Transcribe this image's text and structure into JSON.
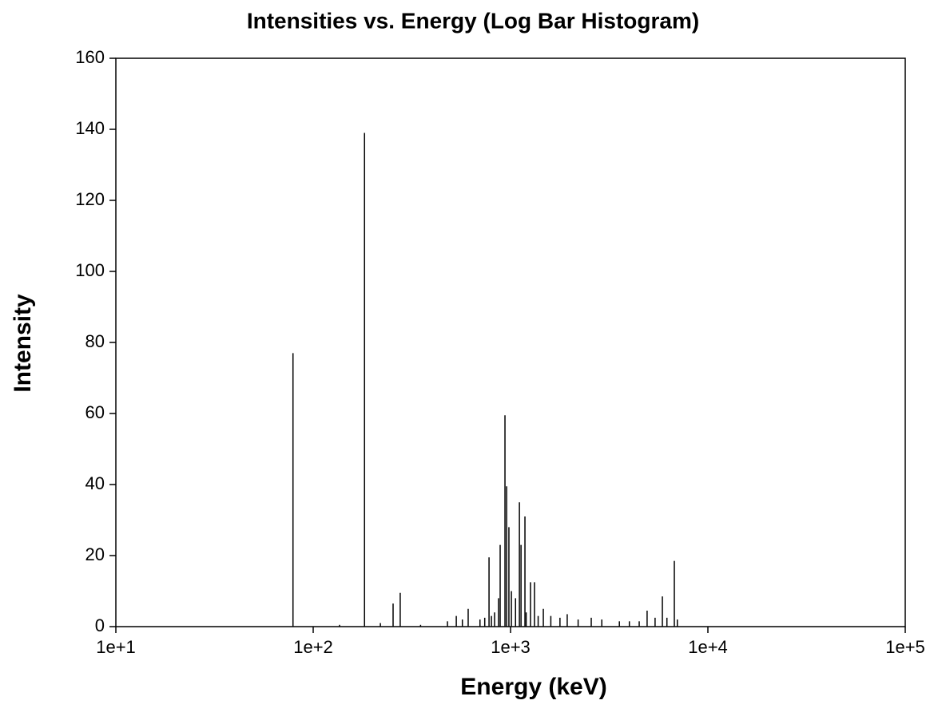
{
  "chart_data": {
    "type": "bar",
    "title": "Intensities vs. Energy (Log Bar Histogram)",
    "xlabel": "Energy (keV)",
    "ylabel": "Intensity",
    "x": [
      79,
      136,
      182,
      219,
      254,
      276,
      350,
      479,
      531,
      570,
      610,
      700,
      740,
      778,
      800,
      830,
      869,
      886,
      937,
      955,
      981,
      1010,
      1060,
      1109,
      1130,
      1183,
      1200,
      1262,
      1322,
      1380,
      1466,
      1600,
      1780,
      1937,
      2200,
      2564,
      2900,
      3560,
      4000,
      4487,
      4920,
      5400,
      5880,
      6200,
      6760,
      7000
    ],
    "values": [
      77,
      0.5,
      139,
      1,
      6.5,
      9.5,
      0.5,
      1.5,
      3,
      2,
      5,
      2,
      2.5,
      19.5,
      3,
      4,
      8,
      23,
      59.5,
      39.5,
      28,
      10,
      8,
      35,
      23,
      31,
      4,
      12.5,
      12.5,
      3,
      5,
      3,
      2.5,
      3.5,
      2,
      2.5,
      2,
      1.5,
      1.5,
      1.5,
      4.5,
      2.5,
      8.5,
      2.5,
      18.5,
      2
    ],
    "color": "#000000",
    "xlog": true,
    "xlim": [
      10,
      100000
    ],
    "xticks": [
      {
        "value": 10,
        "label": "1e+1"
      },
      {
        "value": 100,
        "label": "1e+2"
      },
      {
        "value": 1000,
        "label": "1e+3"
      },
      {
        "value": 10000,
        "label": "1e+4"
      },
      {
        "value": 100000,
        "label": "1e+5"
      }
    ],
    "ylim": [
      0,
      160
    ],
    "yticks": [
      0,
      20,
      40,
      60,
      80,
      100,
      120,
      140,
      160
    ],
    "grid": false
  }
}
